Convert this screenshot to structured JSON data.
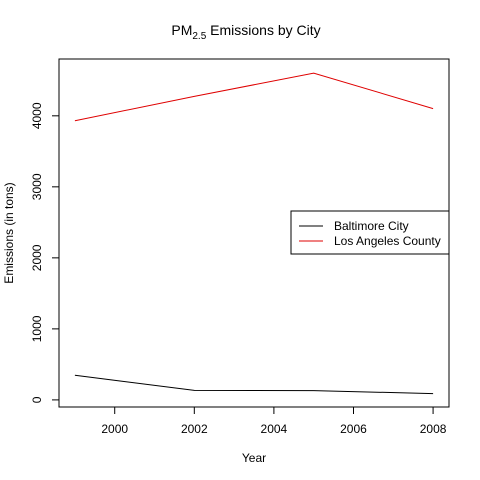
{
  "chart_data": {
    "type": "line",
    "title": {
      "prefix": "PM",
      "subscript": "2.5",
      "suffix": " Emissions by City"
    },
    "xlabel": "Year",
    "ylabel": "Emissions (in tons)",
    "x": [
      1999,
      2002,
      2005,
      2008
    ],
    "xlim": [
      1998.6,
      2008.4
    ],
    "ylim": [
      -100,
      4800
    ],
    "xticks": [
      2000,
      2002,
      2004,
      2006,
      2008
    ],
    "yticks": [
      0,
      1000,
      2000,
      3000,
      4000
    ],
    "grid": false,
    "legend_position": "right",
    "series": [
      {
        "name": "Baltimore City",
        "color": "#000000",
        "values": [
          346.8,
          134.3,
          130.4,
          88.3
        ]
      },
      {
        "name": "Los Angeles County",
        "color": "#DF0000",
        "values": [
          3931.1,
          4274.0,
          4601.4,
          4101.3
        ]
      }
    ]
  }
}
